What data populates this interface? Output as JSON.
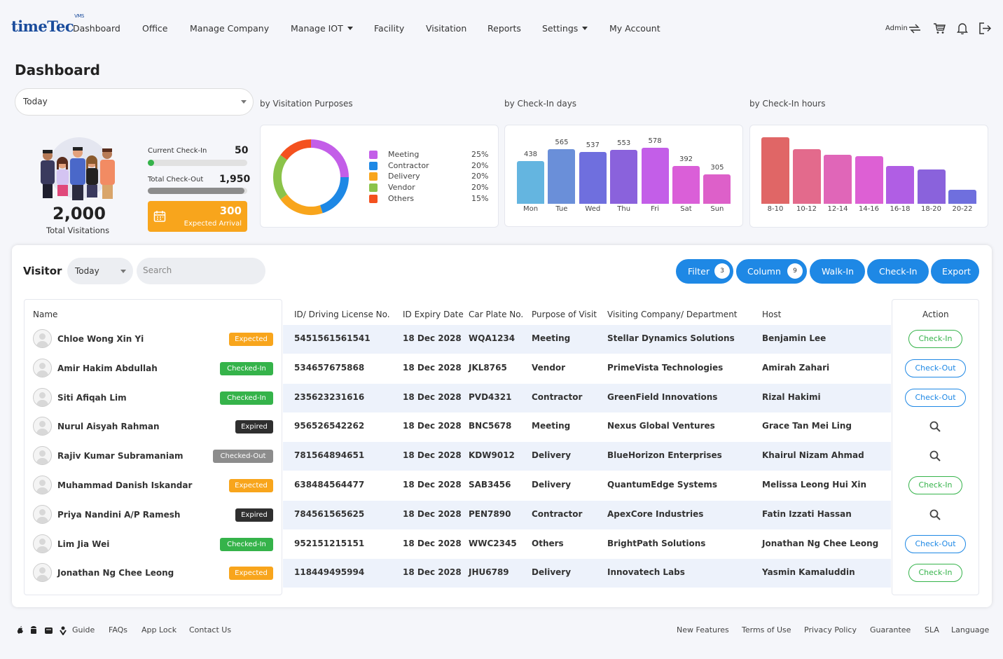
{
  "nav": {
    "logo": "timeTec",
    "logo_sup": "VMS",
    "items": [
      "Dashboard",
      "Office",
      "Manage Company",
      "Manage IOT",
      "Facility",
      "Visitation",
      "Reports",
      "Settings",
      "My Account"
    ],
    "admin": "Admin"
  },
  "page_title": "Dashboard",
  "period_select": "Today",
  "labels": {
    "purposes": "by Visitation Purposes",
    "days": "by Check-In days",
    "hours": "by Check-In hours"
  },
  "summary": {
    "total_value": "2,000",
    "total_label": "Total Visitations",
    "current_checkin_label": "Current Check-In",
    "current_checkin_value": "50",
    "current_checkin_fraction": 0.025,
    "total_checkout_label": "Total Check-Out",
    "total_checkout_value": "1,950",
    "total_checkout_fraction": 0.975,
    "expected_value": "300",
    "expected_label": "Expected Arrival"
  },
  "purposes": [
    {
      "name": "Meeting",
      "pct": "25%",
      "value": 25,
      "color": "#c35ee8"
    },
    {
      "name": "Contractor",
      "pct": "20%",
      "value": 20,
      "color": "#1e88e5"
    },
    {
      "name": "Delivery",
      "pct": "20%",
      "value": 20,
      "color": "#f8a51c"
    },
    {
      "name": "Vendor",
      "pct": "20%",
      "value": 20,
      "color": "#8bc34a"
    },
    {
      "name": "Others",
      "pct": "15%",
      "value": 15,
      "color": "#f4511e"
    }
  ],
  "days": [
    {
      "label": "Mon",
      "value": 438,
      "vlabel": "438",
      "color": "#64b5e0"
    },
    {
      "label": "Tue",
      "value": 565,
      "vlabel": "565",
      "color": "#6a8fd9"
    },
    {
      "label": "Wed",
      "value": 537,
      "vlabel": "537",
      "color": "#6f6fde"
    },
    {
      "label": "Thu",
      "value": 553,
      "vlabel": "553",
      "color": "#8a62dc"
    },
    {
      "label": "Fri",
      "value": 578,
      "vlabel": "578",
      "color": "#c35ee8"
    },
    {
      "label": "Sat",
      "value": 392,
      "vlabel": "392",
      "color": "#da5fd8"
    },
    {
      "label": "Sun",
      "value": 305,
      "vlabel": "305",
      "color": "#dd60c9"
    }
  ],
  "hours": [
    {
      "label": "8-10",
      "value": 100,
      "color": "#e06666"
    },
    {
      "label": "10-12",
      "value": 82,
      "color": "#e36a8c"
    },
    {
      "label": "12-14",
      "value": 74,
      "color": "#e066b8"
    },
    {
      "label": "14-16",
      "value": 72,
      "color": "#dd60d4"
    },
    {
      "label": "16-18",
      "value": 57,
      "color": "#b05ee4"
    },
    {
      "label": "18-20",
      "value": 52,
      "color": "#8a62dc"
    },
    {
      "label": "20-22",
      "value": 21,
      "color": "#6f6fde"
    }
  ],
  "visitor": {
    "title": "Visitor",
    "period": "Today",
    "search_placeholder": "Search",
    "buttons": {
      "filter": "Filter",
      "filter_count": "3",
      "column": "Column",
      "column_count": "9",
      "walkin": "Walk-In",
      "checkin": "Check-In",
      "export": "Export"
    },
    "headers": {
      "name": "Name",
      "id": "ID/ Driving License No.",
      "expiry": "ID Expiry Date",
      "plate": "Car Plate No.",
      "purpose": "Purpose of Visit",
      "company": "Visiting Company/ Department",
      "host": "Host",
      "action": "Action"
    },
    "rows": [
      {
        "name": "Chloe Wong Xin Yi",
        "status": "Expected",
        "id": "5451561561541",
        "expiry": "18 Dec 2028",
        "plate": "WQA1234",
        "purpose": "Meeting",
        "company": "Stellar Dynamics Solutions",
        "host": "Benjamin Lee",
        "action": "Check-In"
      },
      {
        "name": "Amir Hakim Abdullah",
        "status": "Checked-In",
        "id": "534657675868",
        "expiry": "18 Dec 2028",
        "plate": "JKL8765",
        "purpose": "Vendor",
        "company": "PrimeVista Technologies",
        "host": "Amirah Zahari",
        "action": "Check-Out"
      },
      {
        "name": "Siti Afiqah Lim",
        "status": "Checked-In",
        "id": "235623231616",
        "expiry": "18 Dec 2028",
        "plate": "PVD4321",
        "purpose": "Contractor",
        "company": "GreenField Innovations",
        "host": "Rizal Hakimi",
        "action": "Check-Out"
      },
      {
        "name": "Nurul Aisyah Rahman",
        "status": "Expired",
        "id": "956526542262",
        "expiry": "18 Dec 2028",
        "plate": "BNC5678",
        "purpose": "Meeting",
        "company": "Nexus Global Ventures",
        "host": "Grace Tan Mei Ling",
        "action": ""
      },
      {
        "name": "Rajiv Kumar Subramaniam",
        "status": "Checked-Out",
        "id": "781564894651",
        "expiry": "18 Dec 2028",
        "plate": "KDW9012",
        "purpose": "Delivery",
        "company": "BlueHorizon Enterprises",
        "host": "Khairul Nizam Ahmad",
        "action": ""
      },
      {
        "name": "Muhammad Danish Iskandar",
        "status": "Expected",
        "id": "638484564477",
        "expiry": "18 Dec 2028",
        "plate": "SAB3456",
        "purpose": "Delivery",
        "company": "QuantumEdge Systems",
        "host": "Melissa Leong Hui Xin",
        "action": "Check-In"
      },
      {
        "name": "Priya Nandini A/P Ramesh",
        "status": "Expired",
        "id": "784561565625",
        "expiry": "18 Dec 2028",
        "plate": "PEN7890",
        "purpose": "Contractor",
        "company": "ApexCore Industries",
        "host": "Fatin Izzati Hassan",
        "action": ""
      },
      {
        "name": "Lim Jia Wei",
        "status": "Checked-In",
        "id": "952151215151",
        "expiry": "18 Dec 2028",
        "plate": "WWC2345",
        "purpose": "Others",
        "company": "BrightPath Solutions",
        "host": "Jonathan Ng Chee Leong",
        "action": "Check-Out"
      },
      {
        "name": "Jonathan Ng Chee Leong",
        "status": "Expected",
        "id": "118449495994",
        "expiry": "18 Dec 2028",
        "plate": "JHU6789",
        "purpose": "Delivery",
        "company": "Innovatech Labs",
        "host": "Yasmin Kamaluddin",
        "action": "Check-In"
      }
    ]
  },
  "status_colors": {
    "Expected": "#f8a51c",
    "Checked-In": "#35b34a",
    "Expired": "#2f2f2f",
    "Checked-Out": "#8c8c8c"
  },
  "footer": {
    "left": [
      "Guide",
      "FAQs",
      "App Lock",
      "Contact Us"
    ],
    "right": [
      "New Features",
      "Terms of Use",
      "Privacy Policy",
      "Guarantee",
      "SLA",
      "Language"
    ]
  }
}
